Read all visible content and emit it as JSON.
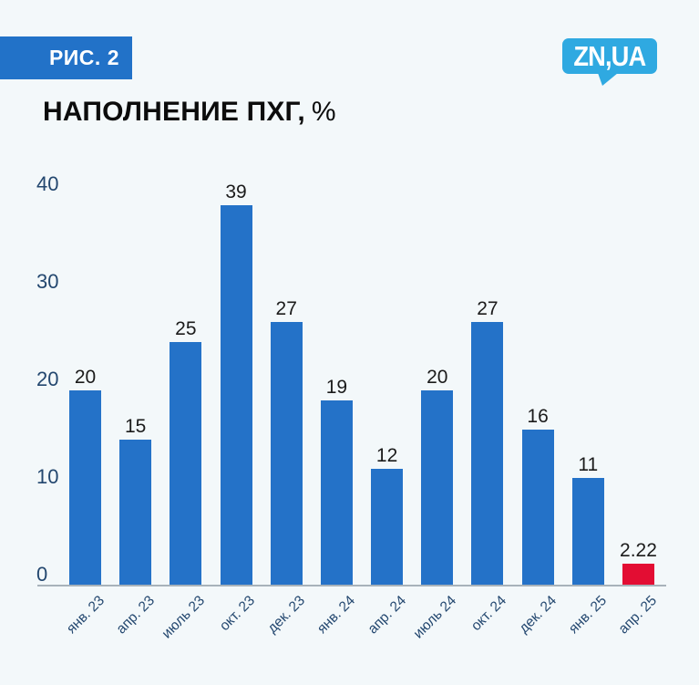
{
  "header": {
    "figure_label": "РИС. 2",
    "logo_text": "ZN,UA"
  },
  "title": {
    "main": "НАПОЛНЕНИЕ ПХГ,",
    "suffix": "%"
  },
  "colors": {
    "background": "#f3f8fa",
    "badge": "#2272c8",
    "badge_text": "#ffffff",
    "logo": "#2fa9e1",
    "logo_text": "#ffffff",
    "title_text": "#0c0c0c",
    "bar": "#2472c8",
    "highlight": "#e30d33",
    "axis_text": "#23476f",
    "axis_line": "#a8b2ba",
    "value_text": "#1b1b1b"
  },
  "chart_data": {
    "type": "bar",
    "title": "НАПОЛНЕНИЕ ПХГ, %",
    "xlabel": "",
    "ylabel": "",
    "categories": [
      "янв. 23",
      "апр. 23",
      "июль 23",
      "окт. 23",
      "дек. 23",
      "янв. 24",
      "апр. 24",
      "июль 24",
      "окт. 24",
      "дек. 24",
      "янв. 25",
      "апр. 25"
    ],
    "values": [
      20,
      15,
      25,
      39,
      27,
      19,
      12,
      20,
      27,
      16,
      11,
      2.22
    ],
    "value_labels": [
      "20",
      "15",
      "25",
      "39",
      "27",
      "19",
      "12",
      "20",
      "27",
      "16",
      "11",
      "2.22"
    ],
    "highlight_index": 11,
    "ylim": [
      0,
      40
    ],
    "yticks": [
      0,
      10,
      20,
      30,
      40
    ],
    "grid": false,
    "legend": false
  }
}
